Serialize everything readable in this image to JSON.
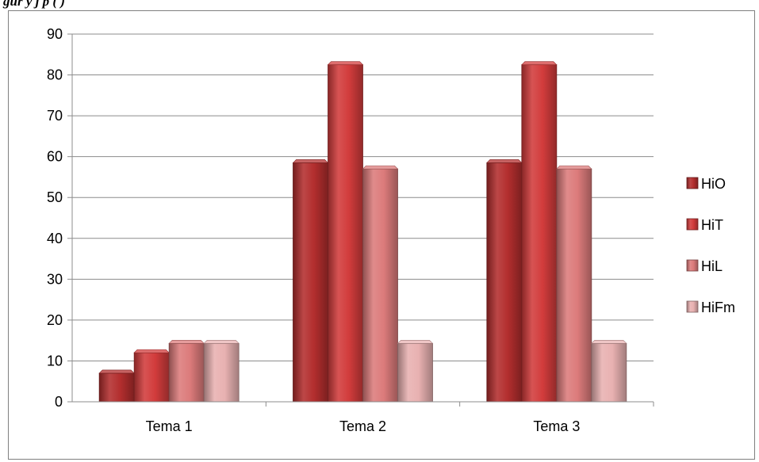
{
  "caption_fragment": "gur                    y                              j                      p                                  (      )",
  "colors": {
    "HiO": "#b32e2e",
    "HiT": "#d23c3c",
    "HiL": "#dc7b7b",
    "HiFm": "#e8b1b1"
  },
  "chart_data": {
    "type": "bar",
    "categories": [
      "Tema 1",
      "Tema 2",
      "Tema 3"
    ],
    "series": [
      {
        "name": "HiO",
        "values": [
          7,
          58.5,
          58.5
        ]
      },
      {
        "name": "HiT",
        "values": [
          12,
          82.5,
          82.5
        ]
      },
      {
        "name": "HiL",
        "values": [
          14.3,
          57,
          57
        ]
      },
      {
        "name": "HiFm",
        "values": [
          14.3,
          14.3,
          14.3
        ]
      }
    ],
    "ylim": [
      0,
      90
    ],
    "yticks": [
      0,
      10,
      20,
      30,
      40,
      50,
      60,
      70,
      80,
      90
    ],
    "grid": true,
    "legend": "right"
  }
}
